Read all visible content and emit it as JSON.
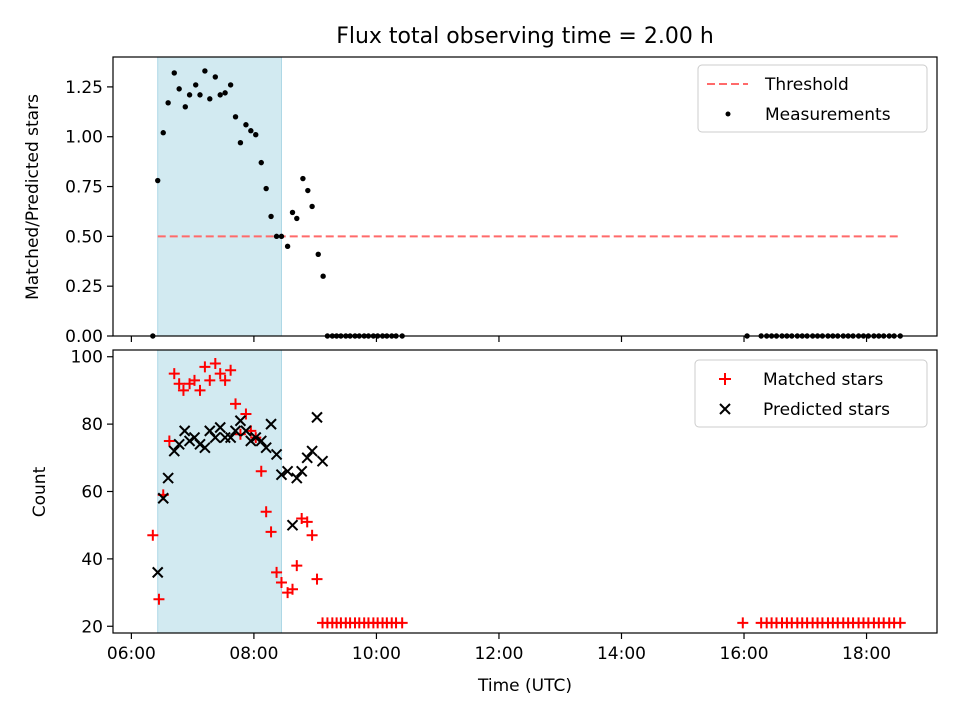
{
  "chart_data": {
    "title": "Flux total observing time = 2.00 h",
    "xlabel": "Time (UTC)",
    "x_tick_labels": [
      "06:00",
      "08:00",
      "10:00",
      "12:00",
      "14:00",
      "16:00",
      "18:00"
    ],
    "x_tick_hours": [
      6,
      8,
      10,
      12,
      14,
      16,
      18
    ],
    "xlim_hours": [
      5.7,
      19.15
    ],
    "highlight_span_hours": [
      6.43,
      8.45
    ],
    "colors": {
      "highlight": "#add8e6",
      "threshold": "#ff6a6a",
      "measurements": "#000000",
      "matched": "#ff0000",
      "predicted": "#000000"
    },
    "panels": [
      {
        "type": "scatter",
        "ylabel": "Matched/Predicted stars",
        "ylim": [
          0,
          1.4
        ],
        "y_ticks": [
          0,
          0.25,
          0.5,
          0.75,
          1.0,
          1.25
        ],
        "y_tick_labels": [
          "0.00",
          "0.25",
          "0.50",
          "0.75",
          "1.00",
          "1.25"
        ],
        "legend": [
          "Threshold",
          "Measurements"
        ],
        "legend_position": "top-right",
        "threshold": {
          "name": "Threshold",
          "value": 0.5,
          "x_range": [
            6.43,
            18.57
          ]
        },
        "series": [
          {
            "name": "Measurements",
            "marker": "dot",
            "points": [
              [
                6.35,
                0.0
              ],
              [
                6.43,
                0.78
              ],
              [
                6.52,
                1.02
              ],
              [
                6.6,
                1.17
              ],
              [
                6.7,
                1.32
              ],
              [
                6.78,
                1.24
              ],
              [
                6.88,
                1.15
              ],
              [
                6.95,
                1.21
              ],
              [
                7.05,
                1.26
              ],
              [
                7.12,
                1.21
              ],
              [
                7.2,
                1.33
              ],
              [
                7.28,
                1.19
              ],
              [
                7.37,
                1.3
              ],
              [
                7.45,
                1.21
              ],
              [
                7.53,
                1.22
              ],
              [
                7.62,
                1.26
              ],
              [
                7.7,
                1.1
              ],
              [
                7.78,
                0.97
              ],
              [
                7.87,
                1.06
              ],
              [
                7.95,
                1.03
              ],
              [
                8.03,
                1.01
              ],
              [
                8.12,
                0.87
              ],
              [
                8.2,
                0.74
              ],
              [
                8.28,
                0.6
              ],
              [
                8.37,
                0.5
              ],
              [
                8.45,
                0.5
              ],
              [
                8.55,
                0.45
              ],
              [
                8.63,
                0.62
              ],
              [
                8.7,
                0.59
              ],
              [
                8.8,
                0.79
              ],
              [
                8.88,
                0.73
              ],
              [
                8.95,
                0.65
              ],
              [
                9.05,
                0.41
              ],
              [
                9.13,
                0.3
              ],
              [
                9.2,
                0
              ],
              [
                9.28,
                0
              ],
              [
                9.35,
                0
              ],
              [
                9.42,
                0
              ],
              [
                9.5,
                0
              ],
              [
                9.57,
                0
              ],
              [
                9.65,
                0
              ],
              [
                9.72,
                0
              ],
              [
                9.8,
                0
              ],
              [
                9.87,
                0
              ],
              [
                9.95,
                0
              ],
              [
                10.02,
                0
              ],
              [
                10.1,
                0
              ],
              [
                10.17,
                0
              ],
              [
                10.25,
                0
              ],
              [
                10.32,
                0
              ],
              [
                10.42,
                0
              ],
              [
                16.05,
                0
              ],
              [
                16.28,
                0
              ],
              [
                16.37,
                0
              ],
              [
                16.45,
                0
              ],
              [
                16.53,
                0
              ],
              [
                16.62,
                0
              ],
              [
                16.7,
                0
              ],
              [
                16.78,
                0
              ],
              [
                16.87,
                0
              ],
              [
                16.95,
                0
              ],
              [
                17.03,
                0
              ],
              [
                17.12,
                0
              ],
              [
                17.2,
                0
              ],
              [
                17.28,
                0
              ],
              [
                17.37,
                0
              ],
              [
                17.45,
                0
              ],
              [
                17.53,
                0
              ],
              [
                17.62,
                0
              ],
              [
                17.7,
                0
              ],
              [
                17.78,
                0
              ],
              [
                17.87,
                0
              ],
              [
                17.95,
                0
              ],
              [
                18.03,
                0
              ],
              [
                18.12,
                0
              ],
              [
                18.2,
                0
              ],
              [
                18.28,
                0
              ],
              [
                18.37,
                0
              ],
              [
                18.45,
                0
              ],
              [
                18.55,
                0
              ]
            ]
          }
        ]
      },
      {
        "type": "scatter",
        "ylabel": "Count",
        "ylim": [
          18,
          102
        ],
        "y_ticks": [
          20,
          40,
          60,
          80,
          100
        ],
        "y_tick_labels": [
          "20",
          "40",
          "60",
          "80",
          "100"
        ],
        "legend": [
          "Matched stars",
          "Predicted stars"
        ],
        "legend_position": "top-right",
        "series": [
          {
            "name": "Matched stars",
            "marker": "plus",
            "points": [
              [
                6.35,
                47
              ],
              [
                6.45,
                28
              ],
              [
                6.52,
                59
              ],
              [
                6.62,
                75
              ],
              [
                6.7,
                95
              ],
              [
                6.78,
                92
              ],
              [
                6.85,
                90
              ],
              [
                6.95,
                92
              ],
              [
                7.03,
                93
              ],
              [
                7.12,
                90
              ],
              [
                7.2,
                97
              ],
              [
                7.28,
                93
              ],
              [
                7.37,
                98
              ],
              [
                7.45,
                95
              ],
              [
                7.53,
                93
              ],
              [
                7.62,
                96
              ],
              [
                7.7,
                86
              ],
              [
                7.78,
                77
              ],
              [
                7.87,
                83
              ],
              [
                7.95,
                78
              ],
              [
                8.03,
                76
              ],
              [
                8.12,
                66
              ],
              [
                8.2,
                54
              ],
              [
                8.28,
                48
              ],
              [
                8.37,
                36
              ],
              [
                8.45,
                33
              ],
              [
                8.55,
                30
              ],
              [
                8.63,
                31
              ],
              [
                8.7,
                38
              ],
              [
                8.78,
                52
              ],
              [
                8.87,
                51
              ],
              [
                8.95,
                47
              ],
              [
                9.03,
                34
              ],
              [
                9.12,
                21
              ],
              [
                9.2,
                21
              ],
              [
                9.28,
                21
              ],
              [
                9.35,
                21
              ],
              [
                9.42,
                21
              ],
              [
                9.5,
                21
              ],
              [
                9.57,
                21
              ],
              [
                9.65,
                21
              ],
              [
                9.72,
                21
              ],
              [
                9.8,
                21
              ],
              [
                9.87,
                21
              ],
              [
                9.95,
                21
              ],
              [
                10.02,
                21
              ],
              [
                10.1,
                21
              ],
              [
                10.17,
                21
              ],
              [
                10.25,
                21
              ],
              [
                10.32,
                21
              ],
              [
                10.42,
                21
              ],
              [
                15.98,
                21
              ],
              [
                16.28,
                21
              ],
              [
                16.37,
                21
              ],
              [
                16.45,
                21
              ],
              [
                16.53,
                21
              ],
              [
                16.62,
                21
              ],
              [
                16.7,
                21
              ],
              [
                16.78,
                21
              ],
              [
                16.87,
                21
              ],
              [
                16.95,
                21
              ],
              [
                17.03,
                21
              ],
              [
                17.12,
                21
              ],
              [
                17.2,
                21
              ],
              [
                17.28,
                21
              ],
              [
                17.37,
                21
              ],
              [
                17.45,
                21
              ],
              [
                17.53,
                21
              ],
              [
                17.62,
                21
              ],
              [
                17.7,
                21
              ],
              [
                17.78,
                21
              ],
              [
                17.87,
                21
              ],
              [
                17.95,
                21
              ],
              [
                18.03,
                21
              ],
              [
                18.12,
                21
              ],
              [
                18.2,
                21
              ],
              [
                18.28,
                21
              ],
              [
                18.37,
                21
              ],
              [
                18.45,
                21
              ],
              [
                18.55,
                21
              ]
            ]
          },
          {
            "name": "Predicted stars",
            "marker": "x",
            "points": [
              [
                6.43,
                36
              ],
              [
                6.52,
                58
              ],
              [
                6.6,
                64
              ],
              [
                6.7,
                72
              ],
              [
                6.78,
                74
              ],
              [
                6.87,
                78
              ],
              [
                6.95,
                75
              ],
              [
                7.03,
                76
              ],
              [
                7.12,
                74
              ],
              [
                7.2,
                73
              ],
              [
                7.28,
                78
              ],
              [
                7.37,
                76
              ],
              [
                7.45,
                79
              ],
              [
                7.53,
                76
              ],
              [
                7.62,
                76
              ],
              [
                7.7,
                78
              ],
              [
                7.78,
                81
              ],
              [
                7.87,
                78
              ],
              [
                7.95,
                75
              ],
              [
                8.03,
                76
              ],
              [
                8.12,
                75
              ],
              [
                8.2,
                73
              ],
              [
                8.28,
                80
              ],
              [
                8.37,
                71
              ],
              [
                8.45,
                65
              ],
              [
                8.55,
                66
              ],
              [
                8.63,
                50
              ],
              [
                8.7,
                64
              ],
              [
                8.78,
                66
              ],
              [
                8.87,
                70
              ],
              [
                8.95,
                72
              ],
              [
                9.03,
                82
              ],
              [
                9.12,
                69
              ]
            ]
          }
        ]
      }
    ]
  }
}
